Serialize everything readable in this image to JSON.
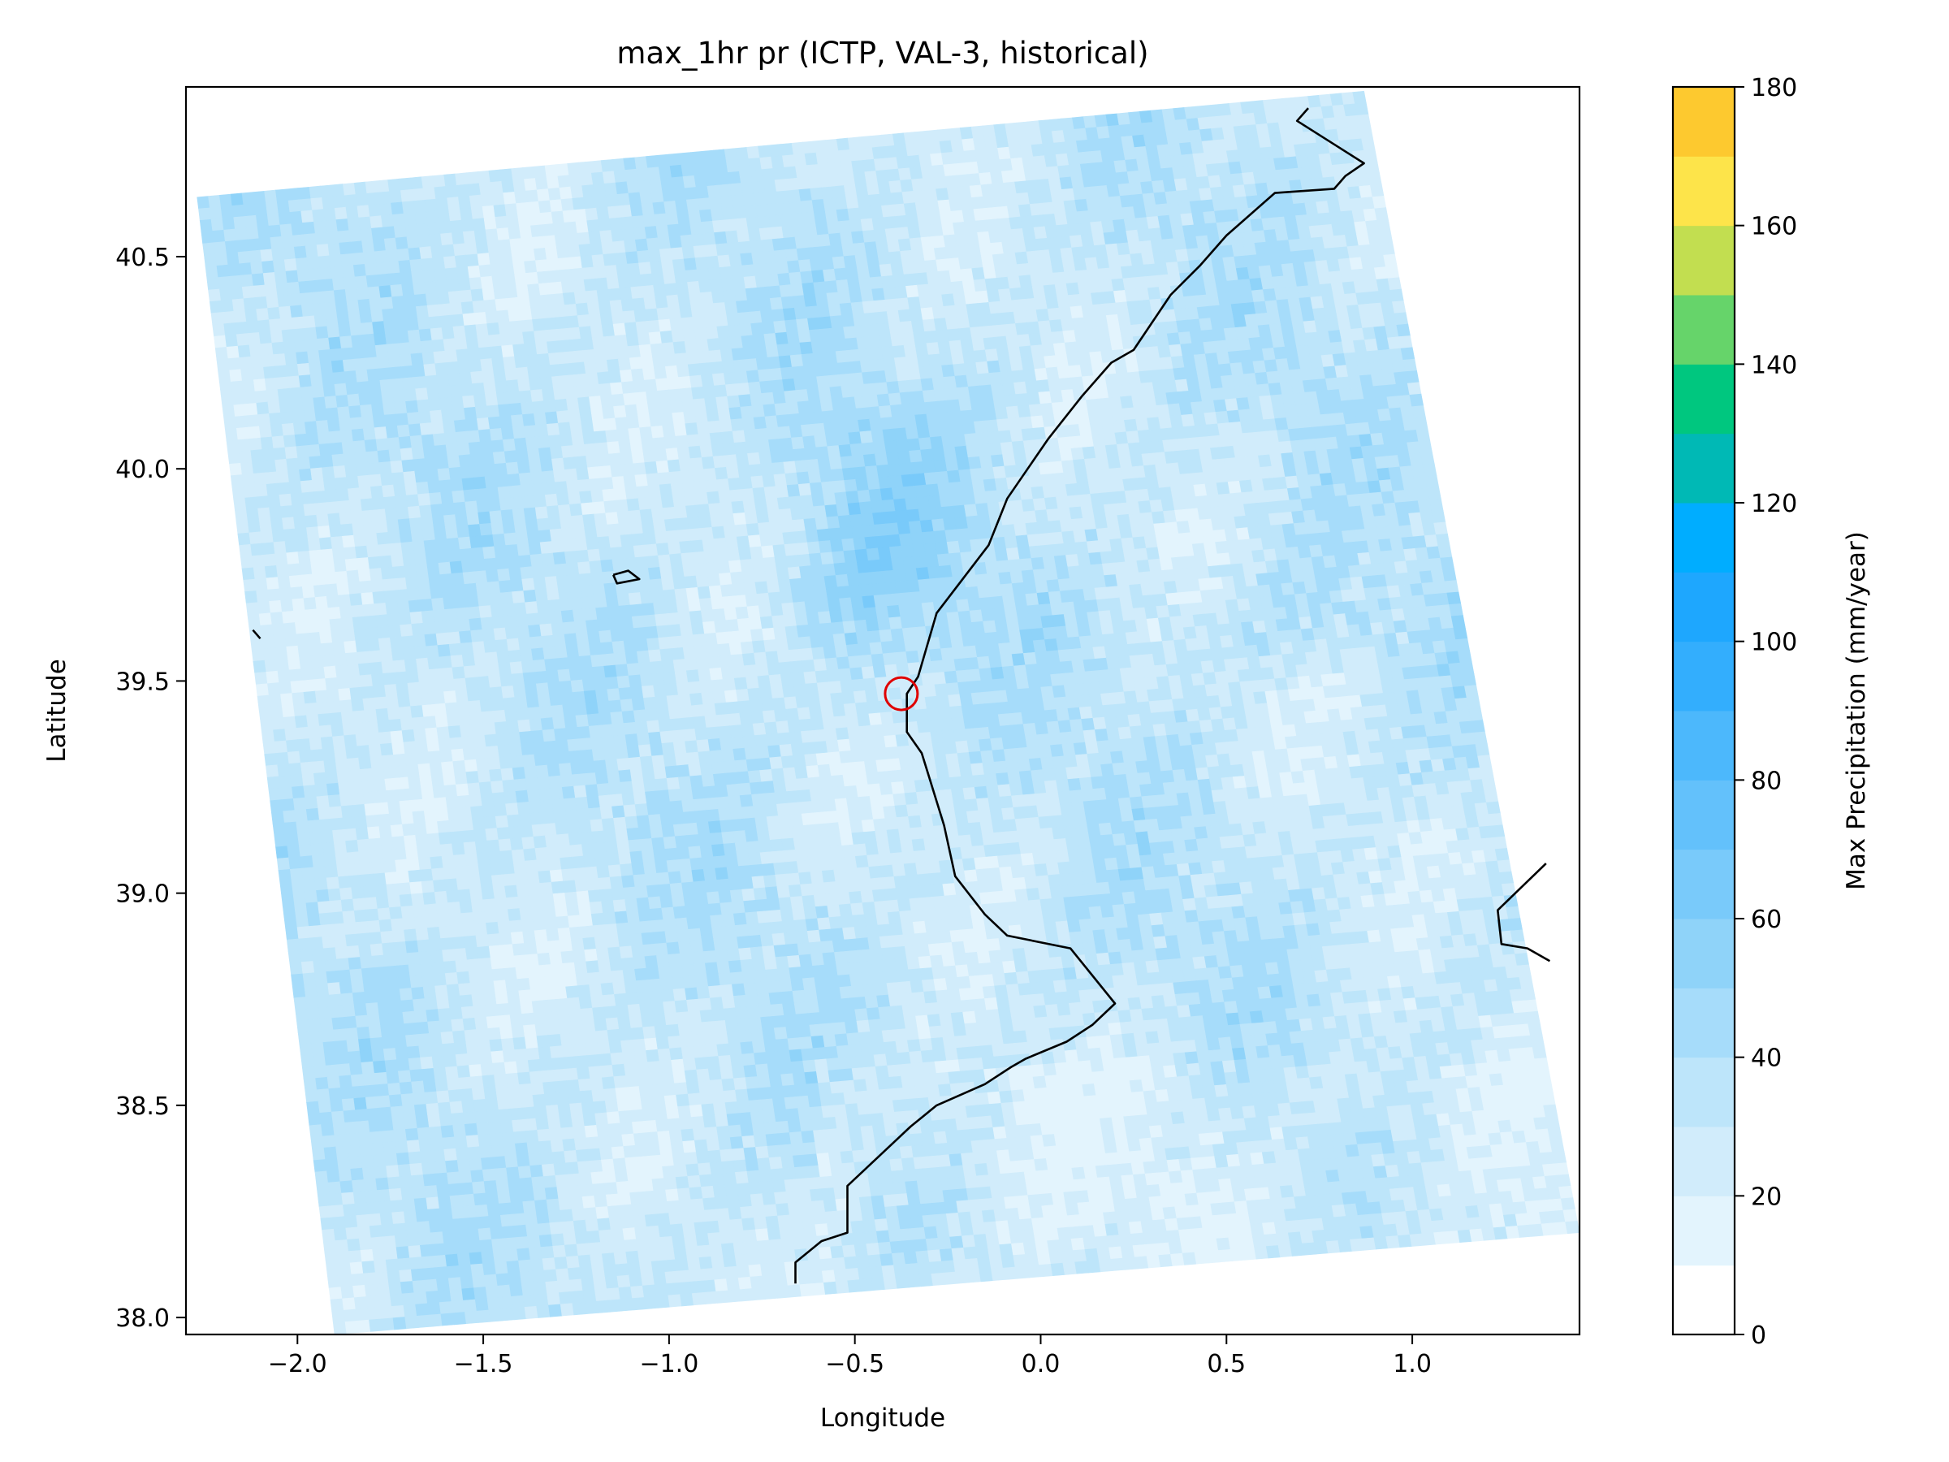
{
  "chart_data": {
    "type": "heatmap",
    "title": "max_1hr pr (ICTP, VAL-3, historical)",
    "xlabel": "Longitude",
    "ylabel": "Latitude",
    "xlim": [
      -2.3,
      1.45
    ],
    "ylim": [
      37.96,
      40.9
    ],
    "x_ticks": [
      -2.0,
      -1.5,
      -1.0,
      -0.5,
      0.0,
      0.5,
      1.0
    ],
    "x_tick_labels": [
      "−2.0",
      "−1.5",
      "−1.0",
      "−0.5",
      "0.0",
      "0.5",
      "1.0"
    ],
    "y_ticks": [
      38.0,
      38.5,
      39.0,
      39.5,
      40.0,
      40.5
    ],
    "y_tick_labels": [
      "38.0",
      "38.5",
      "39.0",
      "39.5",
      "40.0",
      "40.5"
    ],
    "grid": false,
    "domain_corners_lonlat": {
      "top_left": [
        -2.27,
        40.64
      ],
      "top_right": [
        0.87,
        40.89
      ],
      "bottom_right": [
        1.45,
        38.2
      ],
      "bottom_left": [
        -1.9,
        37.96
      ]
    },
    "field_note": "max 1-hr precipitation field, values mostly 10-50 mm, higher (40-70) around lon -0.5, lat 39.6-40.0",
    "colorbar": {
      "label": "Max Precipitation (mm/year)",
      "min": 0,
      "max": 180,
      "ticks": [
        0,
        20,
        40,
        60,
        80,
        100,
        120,
        140,
        160,
        180
      ],
      "levels": [
        0,
        10,
        20,
        30,
        40,
        50,
        60,
        70,
        80,
        90,
        100,
        110,
        120,
        130,
        140,
        150,
        160,
        170,
        180
      ],
      "colors": [
        "#ffffff",
        "#e3f4fd",
        "#d1ecfb",
        "#bde5fa",
        "#a6dcfa",
        "#8fd3f9",
        "#79cafa",
        "#63c1fb",
        "#4cb8fc",
        "#33aefd",
        "#1ea7fe",
        "#00adff",
        "#00b9b5",
        "#00c77f",
        "#66d46a",
        "#c2de50",
        "#fde44a",
        "#fdc92f",
        "#fda428",
        "#f97a23",
        "#d93026"
      ]
    },
    "coastline_lonlat": [
      [
        [
          0.72,
          40.85
        ],
        [
          0.69,
          40.82
        ],
        [
          0.87,
          40.72
        ],
        [
          0.82,
          40.69
        ],
        [
          0.79,
          40.66
        ],
        [
          0.63,
          40.65
        ],
        [
          0.5,
          40.55
        ],
        [
          0.43,
          40.48
        ],
        [
          0.35,
          40.41
        ],
        [
          0.25,
          40.28
        ],
        [
          0.19,
          40.25
        ],
        [
          0.11,
          40.17
        ],
        [
          0.02,
          40.07
        ],
        [
          -0.09,
          39.93
        ],
        [
          -0.14,
          39.82
        ],
        [
          -0.28,
          39.66
        ],
        [
          -0.3,
          39.6
        ],
        [
          -0.33,
          39.51
        ],
        [
          -0.36,
          39.47
        ],
        [
          -0.36,
          39.38
        ],
        [
          -0.32,
          39.33
        ],
        [
          -0.26,
          39.16
        ],
        [
          -0.23,
          39.04
        ],
        [
          -0.15,
          38.95
        ],
        [
          -0.09,
          38.9
        ],
        [
          0.08,
          38.87
        ],
        [
          0.2,
          38.74
        ],
        [
          0.14,
          38.69
        ],
        [
          0.07,
          38.65
        ],
        [
          -0.04,
          38.61
        ],
        [
          -0.08,
          38.59
        ],
        [
          -0.15,
          38.55
        ],
        [
          -0.28,
          38.5
        ],
        [
          -0.35,
          38.45
        ],
        [
          -0.52,
          38.31
        ],
        [
          -0.52,
          38.2
        ],
        [
          -0.59,
          38.18
        ],
        [
          -0.66,
          38.13
        ],
        [
          -0.66,
          38.08
        ]
      ],
      [
        [
          1.36,
          39.07
        ],
        [
          1.23,
          38.96
        ],
        [
          1.24,
          38.88
        ],
        [
          1.31,
          38.87
        ],
        [
          1.37,
          38.84
        ]
      ]
    ],
    "lakes_lonlat": [
      [
        [
          -1.15,
          39.75
        ],
        [
          -1.11,
          39.76
        ],
        [
          -1.08,
          39.74
        ],
        [
          -1.14,
          39.73
        ],
        [
          -1.15,
          39.75
        ]
      ],
      [
        [
          -2.12,
          39.62
        ],
        [
          -2.1,
          39.6
        ]
      ]
    ],
    "marker": {
      "lon": -0.375,
      "lat": 39.47,
      "shape": "circle",
      "color": "#e00000"
    }
  }
}
